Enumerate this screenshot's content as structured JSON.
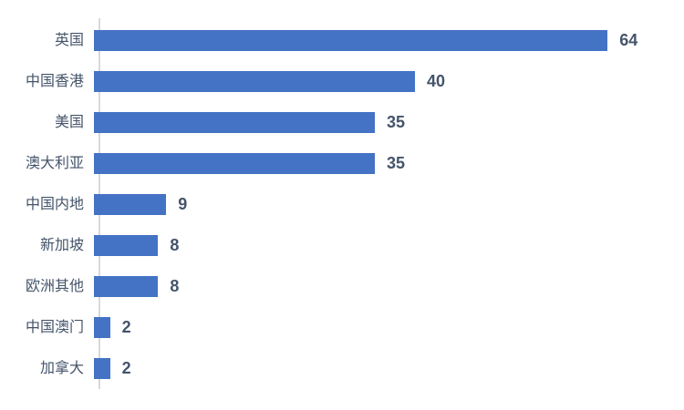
{
  "chart_data": {
    "type": "bar",
    "orientation": "horizontal",
    "title": "",
    "xlabel": "",
    "ylabel": "",
    "categories": [
      "英国",
      "中国香港",
      "美国",
      "澳大利亚",
      "中国内地",
      "新加坡",
      "欧洲其他",
      "中国澳门",
      "加拿大"
    ],
    "values": [
      64,
      40,
      35,
      35,
      9,
      8,
      8,
      2,
      2
    ],
    "data_labels": [
      "64",
      "40",
      "35",
      "35",
      "9",
      "8",
      "8",
      "2",
      "2"
    ],
    "xlim": [
      0,
      70
    ],
    "grid": false,
    "legend": null,
    "colors": {
      "bar": "#4472C4",
      "text": "#44546A",
      "axis_line": "#D9D9D9",
      "background": "#FFFFFF"
    }
  }
}
